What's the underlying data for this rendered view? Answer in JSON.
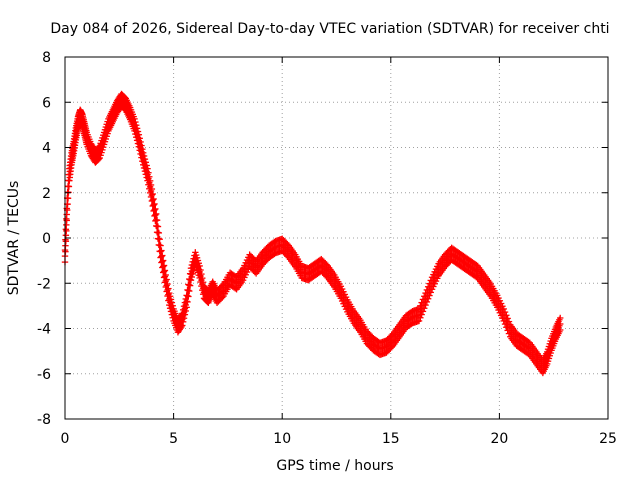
{
  "chart_data": {
    "type": "scatter",
    "title": "Day 084 of 2026, Sidereal Day-to-day VTEC variation (SDTVAR) for receiver chti",
    "xlabel": "GPS time / hours",
    "ylabel": "SDTVAR / TECUs",
    "xlim": [
      0,
      25
    ],
    "ylim": [
      -8,
      8
    ],
    "xticks": [
      0,
      5,
      10,
      15,
      20,
      25
    ],
    "yticks": [
      -8,
      -6,
      -4,
      -2,
      0,
      2,
      4,
      6,
      8
    ],
    "grid": true,
    "marker": "+",
    "color": "#ff0000",
    "series": [
      {
        "name": "SDTVAR",
        "x": [
          0.0,
          0.1,
          0.2,
          0.3,
          0.4,
          0.5,
          0.6,
          0.7,
          0.8,
          0.9,
          1.0,
          1.2,
          1.4,
          1.6,
          1.8,
          2.0,
          2.2,
          2.4,
          2.6,
          2.8,
          3.0,
          3.2,
          3.4,
          3.6,
          3.8,
          4.0,
          4.2,
          4.4,
          4.6,
          4.8,
          5.0,
          5.2,
          5.4,
          5.6,
          5.8,
          6.0,
          6.2,
          6.4,
          6.6,
          6.8,
          7.0,
          7.3,
          7.6,
          7.9,
          8.2,
          8.5,
          8.8,
          9.1,
          9.4,
          9.7,
          10.0,
          10.3,
          10.6,
          10.9,
          11.2,
          11.5,
          11.8,
          12.1,
          12.4,
          12.7,
          13.0,
          13.3,
          13.6,
          13.9,
          14.2,
          14.5,
          14.8,
          15.1,
          15.4,
          15.7,
          16.0,
          16.3,
          16.6,
          16.9,
          17.2,
          17.5,
          17.8,
          18.1,
          18.4,
          18.7,
          19.0,
          19.3,
          19.6,
          19.9,
          20.2,
          20.5,
          20.8,
          21.1,
          21.4,
          21.7,
          22.0,
          22.2,
          22.4,
          22.6,
          22.8
        ],
        "y": [
          -0.8,
          1.5,
          2.8,
          3.5,
          4.0,
          4.6,
          5.1,
          5.4,
          5.2,
          4.8,
          4.4,
          3.9,
          3.6,
          3.8,
          4.4,
          5.0,
          5.4,
          5.8,
          6.1,
          5.9,
          5.5,
          5.0,
          4.3,
          3.5,
          2.8,
          1.9,
          0.8,
          -0.6,
          -1.7,
          -2.7,
          -3.4,
          -3.9,
          -3.6,
          -2.8,
          -1.6,
          -0.9,
          -1.5,
          -2.4,
          -2.6,
          -2.2,
          -2.6,
          -2.3,
          -1.8,
          -2.0,
          -1.6,
          -1.0,
          -1.3,
          -0.9,
          -0.6,
          -0.4,
          -0.3,
          -0.6,
          -1.0,
          -1.5,
          -1.6,
          -1.4,
          -1.2,
          -1.5,
          -1.9,
          -2.4,
          -3.0,
          -3.5,
          -3.9,
          -4.4,
          -4.7,
          -4.9,
          -4.8,
          -4.5,
          -4.1,
          -3.7,
          -3.5,
          -3.4,
          -2.7,
          -2.0,
          -1.4,
          -1.0,
          -0.7,
          -0.9,
          -1.1,
          -1.3,
          -1.5,
          -1.9,
          -2.3,
          -2.8,
          -3.4,
          -4.1,
          -4.5,
          -4.7,
          -4.9,
          -5.3,
          -5.7,
          -5.3,
          -4.7,
          -4.2,
          -3.8
        ]
      }
    ]
  }
}
